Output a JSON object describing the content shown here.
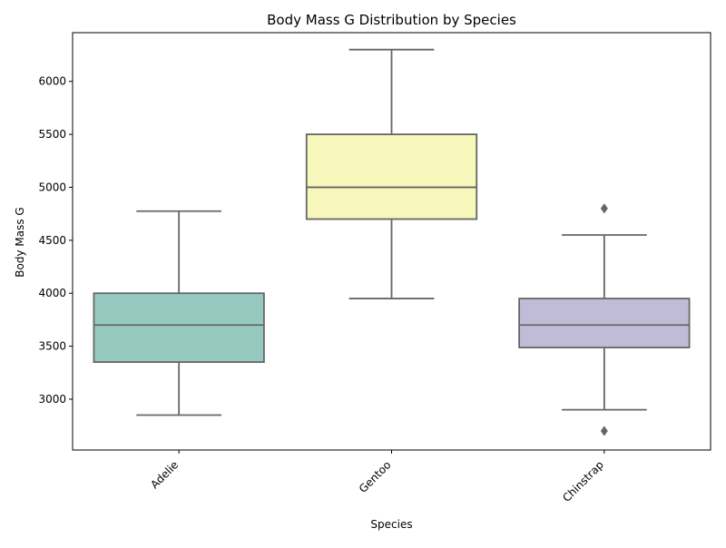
{
  "chart_data": {
    "type": "box",
    "title": "Body Mass G Distribution by Species",
    "xlabel": "Species",
    "ylabel": "Body Mass G",
    "ylim": [
      2520,
      6460
    ],
    "yticks": [
      3000,
      3500,
      4000,
      4500,
      5000,
      5500,
      6000
    ],
    "categories": [
      "Adelie",
      "Gentoo",
      "Chinstrap"
    ],
    "boxes": [
      {
        "category": "Adelie",
        "whisker_low": 2850,
        "q1": 3350,
        "median": 3700,
        "q3": 4000,
        "whisker_high": 4775,
        "outliers": [],
        "color": "#96cac0"
      },
      {
        "category": "Gentoo",
        "whisker_low": 3950,
        "q1": 4700,
        "median": 5000,
        "q3": 5500,
        "whisker_high": 6300,
        "outliers": [],
        "color": "#f7f7bb"
      },
      {
        "category": "Chinstrap",
        "whisker_low": 2900,
        "q1": 3487.5,
        "median": 3700,
        "q3": 3950,
        "whisker_high": 4550,
        "outliers": [
          4800,
          2700
        ],
        "color": "#c0bcd8"
      }
    ],
    "grid": false,
    "legend": "none",
    "line_color": "#666666"
  }
}
